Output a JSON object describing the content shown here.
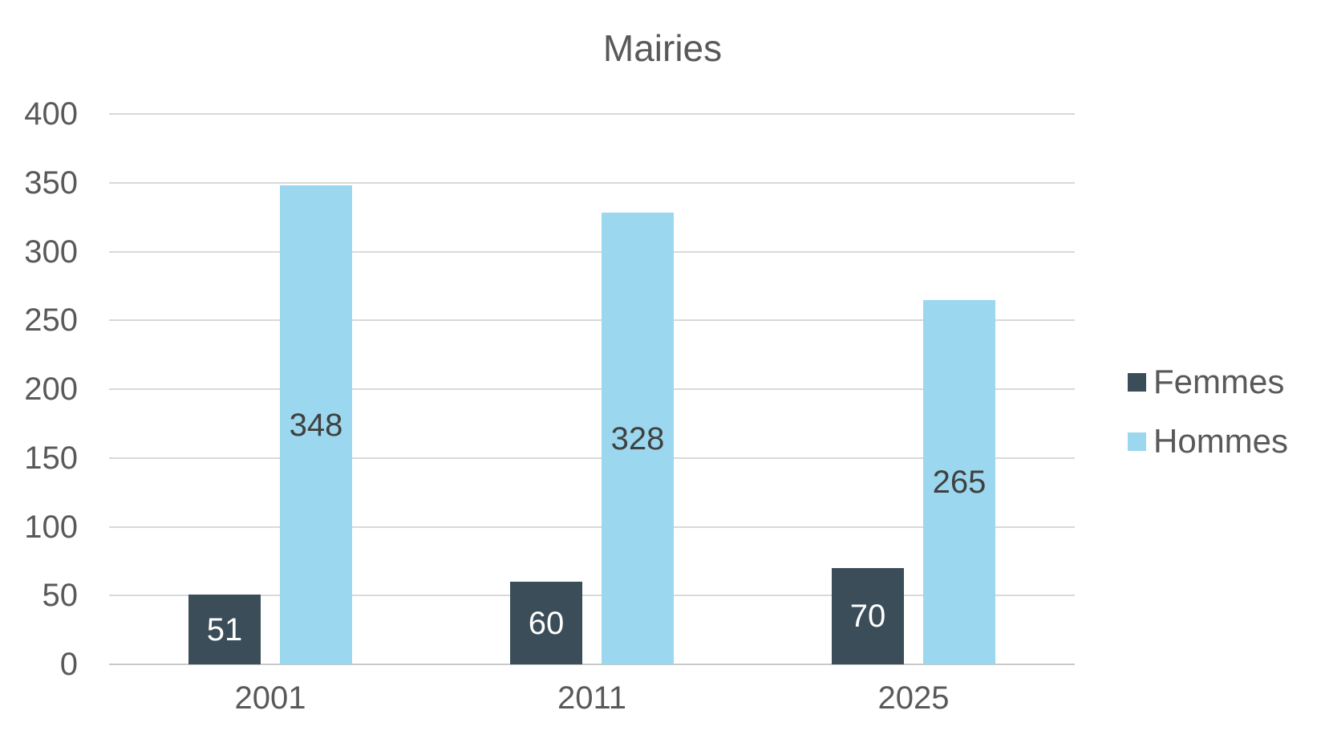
{
  "chart_data": {
    "type": "bar",
    "title": "Mairies",
    "categories": [
      "2001",
      "2011",
      "2025"
    ],
    "series": [
      {
        "name": "Femmes",
        "color": "#3B4D58",
        "label_color": "#FFFFFF",
        "values": [
          51,
          60,
          70
        ]
      },
      {
        "name": "Hommes",
        "color": "#9BD7EE",
        "label_color": "#404040",
        "values": [
          348,
          328,
          265
        ]
      }
    ],
    "xlabel": "",
    "ylabel": "",
    "ylim": [
      0,
      400
    ],
    "yticks": [
      0,
      50,
      100,
      150,
      200,
      250,
      300,
      350,
      400
    ],
    "grid": true,
    "legend_position": "right",
    "colors": {
      "title_text": "#595959",
      "axis_text": "#595959",
      "gridline": "#D9D9D9",
      "baseline": "#C9C9C9",
      "background": "#FFFFFF"
    }
  }
}
